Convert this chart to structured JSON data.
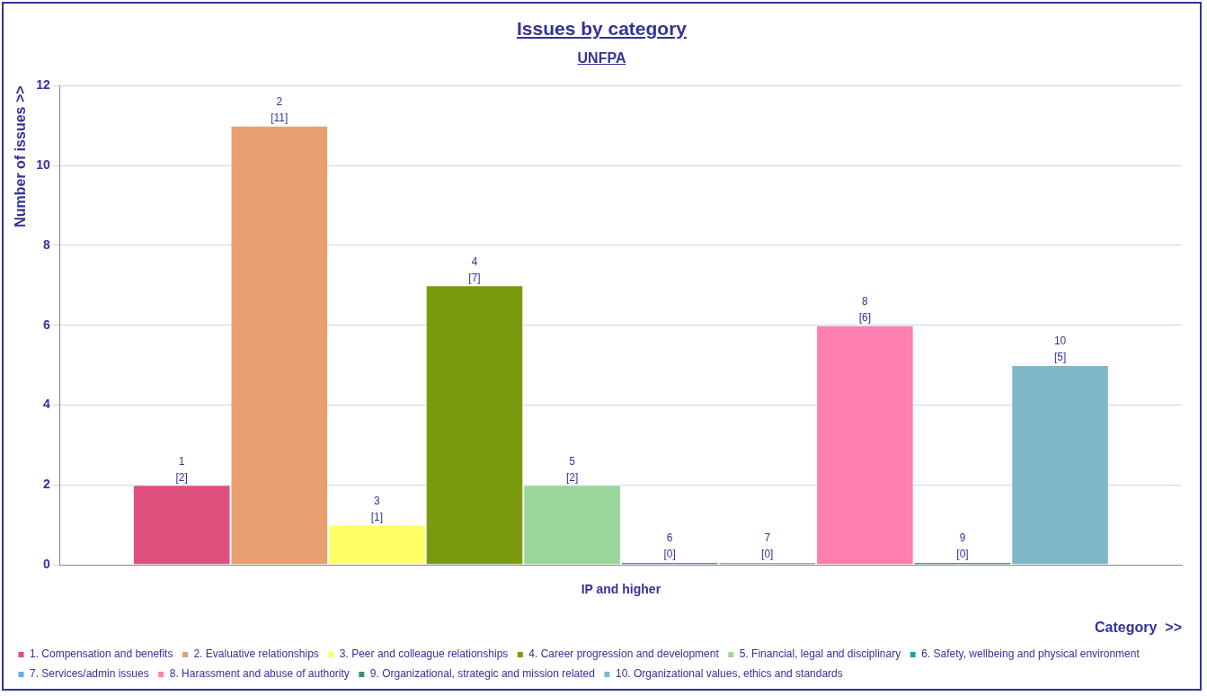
{
  "chart_data": {
    "type": "bar",
    "title": "Issues by category",
    "subtitle": "UNFPA",
    "xlabel": "Category  >>",
    "ylabel": "Number of issues >>",
    "categories": [
      "IP and higher"
    ],
    "series": [
      {
        "name": "1. Compensation and benefits",
        "color": "#e0507c",
        "values": [
          2
        ],
        "value_labels": [
          "1\n[2]"
        ]
      },
      {
        "name": "2. Evaluative relationships",
        "color": "#e8a070",
        "values": [
          11
        ],
        "value_labels": [
          "2\n[11]"
        ]
      },
      {
        "name": "3. Peer and colleague relationships",
        "color": "#ffff66",
        "values": [
          1
        ],
        "value_labels": [
          "3\n[1]"
        ]
      },
      {
        "name": "4. Career progression and development",
        "color": "#7a9a10",
        "values": [
          7
        ],
        "value_labels": [
          "4\n[7]"
        ]
      },
      {
        "name": "5. Financial, legal and disciplinary",
        "color": "#99d699",
        "values": [
          2
        ],
        "value_labels": [
          "5\n[2]"
        ]
      },
      {
        "name": "6. Safety, wellbeing and physical environment",
        "color": "#20a0a0",
        "values": [
          0
        ],
        "value_labels": [
          "6\n[0]"
        ]
      },
      {
        "name": "7. Services/admin issues",
        "color": "#66aaee",
        "values": [
          0
        ],
        "value_labels": [
          "7\n[0]"
        ]
      },
      {
        "name": "8. Harassment and abuse of authority",
        "color": "#ff80b0",
        "values": [
          6
        ],
        "value_labels": [
          "8\n[6]"
        ]
      },
      {
        "name": "9. Organizational, strategic and mission related",
        "color": "#339966",
        "values": [
          0
        ],
        "value_labels": [
          "9\n[0]"
        ]
      },
      {
        "name": "10. Organizational values, ethics and standards",
        "color": "#80b8c8",
        "values": [
          5
        ],
        "value_labels": [
          "10\n[5]"
        ]
      }
    ],
    "ylim": [
      0,
      12
    ],
    "yticks": [
      0,
      2,
      4,
      6,
      8,
      10,
      12
    ],
    "grid": "y",
    "legend": "bottom"
  }
}
